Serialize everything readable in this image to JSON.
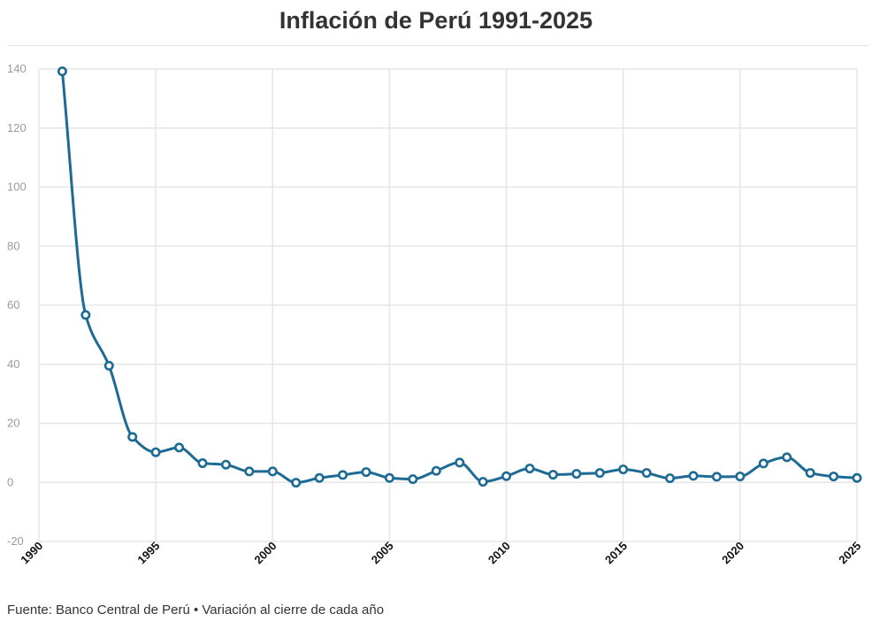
{
  "header": {
    "title": "Inflación de Perú 1991-2025"
  },
  "footer": {
    "source": "Fuente: Banco Central de Perú • Variación al cierre de cada año"
  },
  "colors": {
    "line": "#1d6a94",
    "grid": "#e6e6e6",
    "point_fill": "#ffffff"
  },
  "chart_data": {
    "type": "line",
    "title": "Inflación de Perú 1991-2025",
    "xlabel": "",
    "ylabel": "",
    "xlim": [
      1990,
      2025
    ],
    "ylim": [
      -20,
      140
    ],
    "xticks": [
      1990,
      1995,
      2000,
      2005,
      2010,
      2015,
      2020,
      2025
    ],
    "yticks": [
      -20,
      0,
      20,
      40,
      60,
      80,
      100,
      120,
      140
    ],
    "grid": true,
    "legend": "none",
    "series": [
      {
        "x": [
          1991,
          1992,
          1993,
          1994,
          1995,
          1996,
          1997,
          1998,
          1999,
          2000,
          2001,
          2002,
          2003,
          2004,
          2005,
          2006,
          2007,
          2008,
          2009,
          2010,
          2011,
          2012,
          2013,
          2014,
          2015,
          2016,
          2017,
          2018,
          2019,
          2020,
          2021,
          2022,
          2023,
          2024,
          2025
        ],
        "y": [
          139.2,
          56.7,
          39.5,
          15.4,
          10.2,
          11.8,
          6.5,
          6.0,
          3.7,
          3.7,
          -0.1,
          1.5,
          2.5,
          3.5,
          1.5,
          1.1,
          3.9,
          6.7,
          0.2,
          2.1,
          4.7,
          2.6,
          2.9,
          3.2,
          4.4,
          3.2,
          1.4,
          2.2,
          1.9,
          2.0,
          6.4,
          8.5,
          3.2,
          2.0,
          1.5
        ]
      }
    ]
  }
}
